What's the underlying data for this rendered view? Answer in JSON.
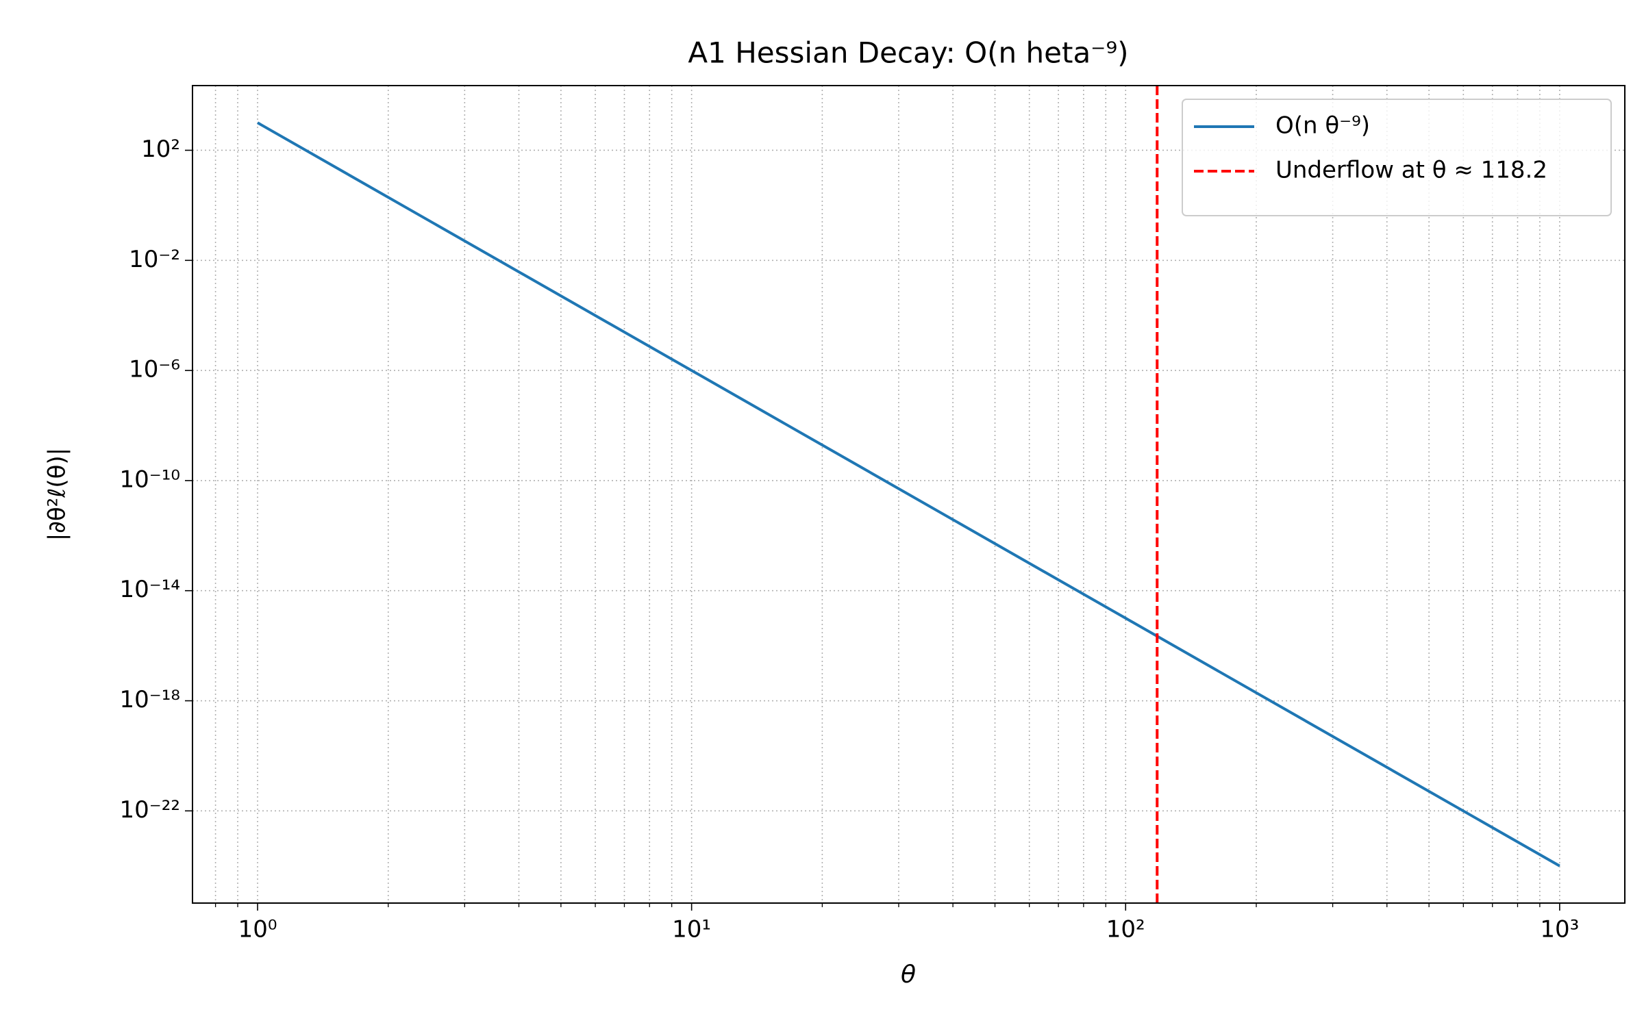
{
  "chart_data": {
    "type": "line",
    "title": "A1 Hessian Decay: O(n heta⁻⁹)",
    "x_label": "θ",
    "y_label": "|∂θ²ℓ(θ)|",
    "x": [
      1,
      10,
      100,
      1000
    ],
    "series": [
      {
        "name": "O(n θ⁻⁹)",
        "color": "#1f77b4",
        "values": [
          1000,
          1e-06,
          1e-15,
          1e-24
        ]
      }
    ],
    "vline": {
      "x": 118.2,
      "name": "Underflow at θ ≈ 118.2",
      "color": "#ff0000",
      "style": "dashed"
    },
    "xscale": "log",
    "yscale": "log",
    "xlim": [
      0.708,
      1413
    ],
    "ylim": [
      4.47e-26,
      22400
    ],
    "xticks": [
      {
        "value": 1,
        "label": "10⁰"
      },
      {
        "value": 10,
        "label": "10¹"
      },
      {
        "value": 100,
        "label": "10²"
      },
      {
        "value": 1000,
        "label": "10³"
      }
    ],
    "xminorticks": [
      0.8,
      0.9,
      2,
      3,
      4,
      5,
      6,
      7,
      8,
      9,
      20,
      30,
      40,
      50,
      60,
      70,
      80,
      90,
      200,
      300,
      400,
      500,
      600,
      700,
      800,
      900
    ],
    "yticks": [
      {
        "value": 100,
        "label": "10²"
      },
      {
        "value": 0.01,
        "label": "10⁻²"
      },
      {
        "value": 1e-06,
        "label": "10⁻⁶"
      },
      {
        "value": 1e-10,
        "label": "10⁻¹⁰"
      },
      {
        "value": 1e-14,
        "label": "10⁻¹⁴"
      },
      {
        "value": 1e-18,
        "label": "10⁻¹⁸"
      },
      {
        "value": 1e-22,
        "label": "10⁻²²"
      }
    ],
    "grid": true,
    "legend": "upper right"
  }
}
